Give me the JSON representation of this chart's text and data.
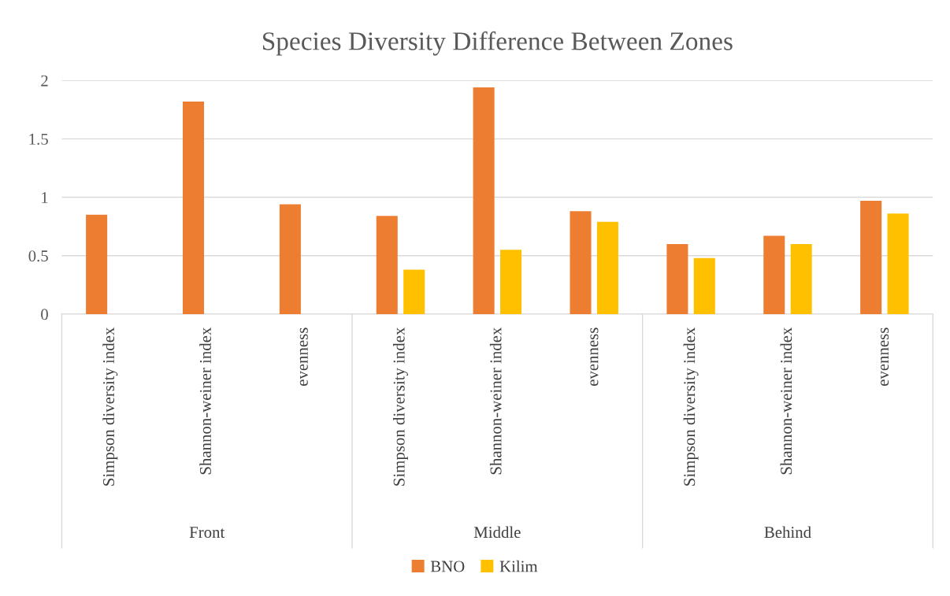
{
  "chart_data": {
    "type": "bar",
    "title": "Species Diversity Difference Between Zones",
    "categories": [
      "Simpson diversity index",
      "Shannon-weiner index",
      "evenness",
      "Simpson diversity index",
      "Shannon-weiner index",
      "evenness",
      "Simpson diversity index",
      "Shannon-weiner index",
      "evenness"
    ],
    "series": [
      {
        "name": "BNO",
        "color": "#ed7d31",
        "values": [
          0.85,
          1.82,
          0.94,
          0.84,
          1.94,
          0.88,
          0.6,
          0.67,
          0.97
        ]
      },
      {
        "name": "Kilim",
        "color": "#ffc000",
        "values": [
          null,
          null,
          null,
          0.38,
          0.55,
          0.79,
          0.48,
          0.6,
          0.86
        ]
      }
    ],
    "annotations": [
      "Front",
      "Middle",
      "Behind"
    ],
    "ylim": [
      0,
      2
    ],
    "yticks": [
      0,
      0.5,
      1,
      1.5,
      2
    ],
    "grid": "y",
    "legend": "bottom"
  }
}
